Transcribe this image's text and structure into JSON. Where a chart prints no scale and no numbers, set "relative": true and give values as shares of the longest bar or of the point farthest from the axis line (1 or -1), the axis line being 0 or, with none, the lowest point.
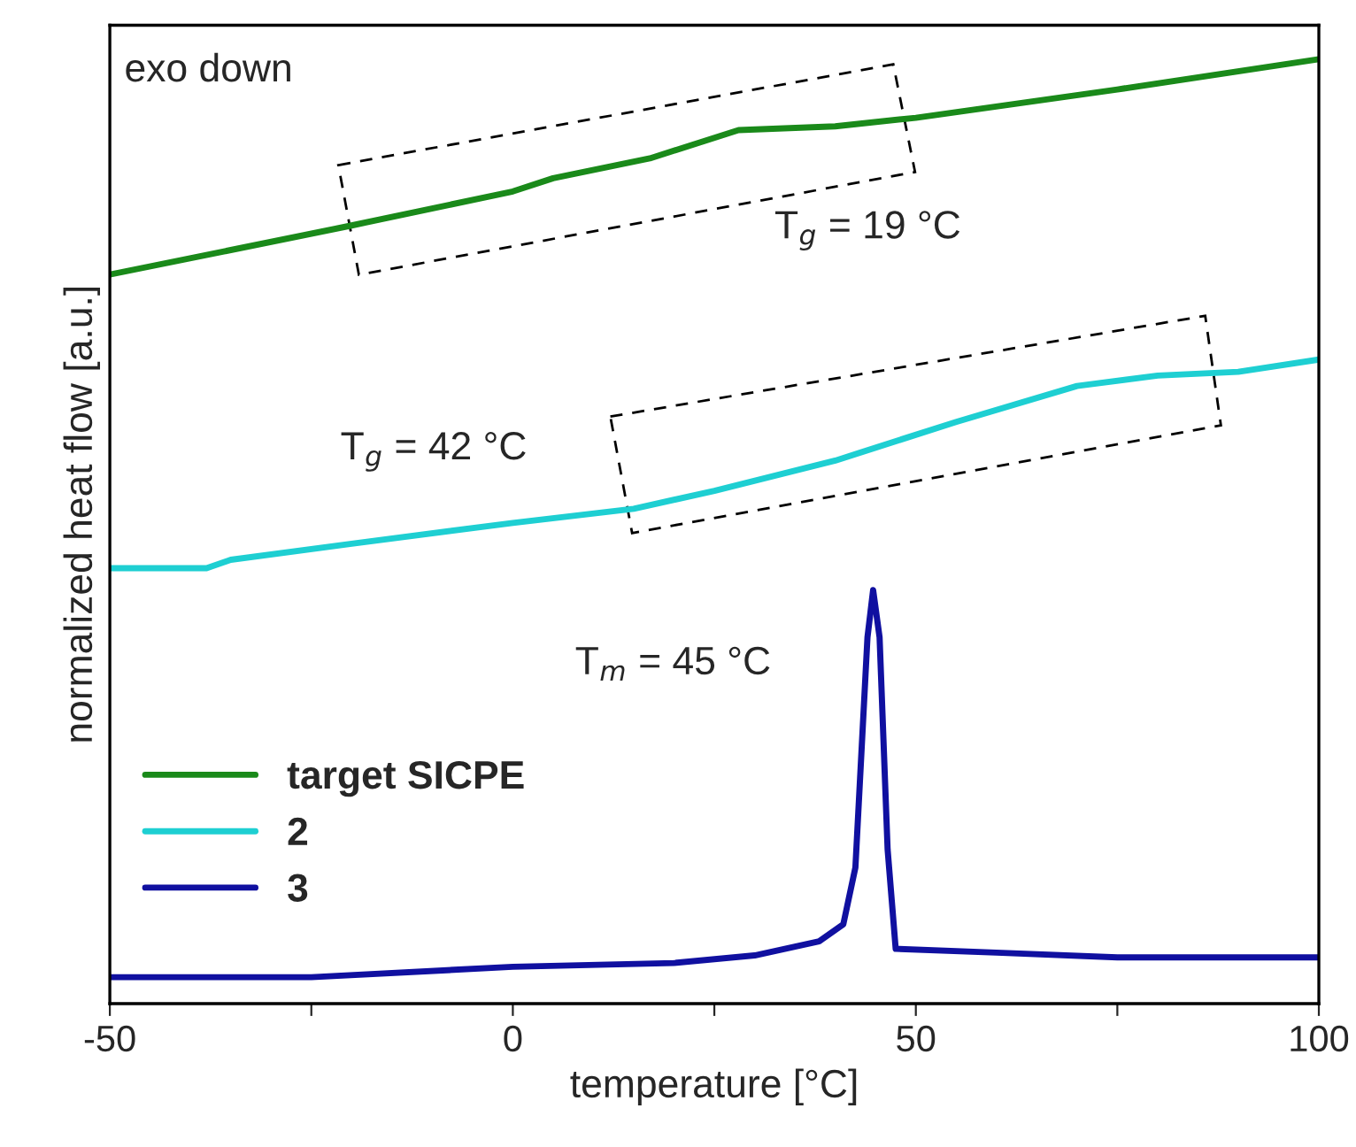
{
  "chart_data": {
    "type": "line",
    "relative": true,
    "xlabel": "temperature [°C]",
    "ylabel": "normalized heat flow [a.u.]",
    "xlim": [
      -50,
      100
    ],
    "xticks": [
      -50,
      {
        "value": -25,
        "label": null
      },
      0,
      {
        "value": 25,
        "label": null
      },
      50,
      {
        "value": 75,
        "label": null
      },
      100
    ],
    "legend": "bottom left",
    "grid": false,
    "annotations": [
      "exo down",
      "T$_{g}$ = 19 °C",
      "T$_{g}$ = 42 °C",
      "T$_{m}$ = 45 °C"
    ],
    "series": [
      {
        "name": "target SICPE",
        "color": "#1a8a1a",
        "x": [
          -50,
          -20,
          0,
          5,
          17,
          28,
          40,
          50,
          75,
          100
        ],
        "values": [
          0.772,
          0.824,
          0.86,
          0.874,
          0.895,
          0.925,
          0.929,
          0.938,
          0.968,
          1.0
        ]
      },
      {
        "name": "2",
        "color": "#1ecfd2",
        "x": [
          -50,
          -38,
          -35,
          -20,
          0,
          15,
          25,
          40,
          55,
          70,
          80,
          90,
          100
        ],
        "values": [
          0.461,
          0.461,
          0.47,
          0.487,
          0.509,
          0.524,
          0.543,
          0.575,
          0.616,
          0.654,
          0.665,
          0.669,
          0.682
        ]
      },
      {
        "name": "3",
        "color": "#1010a0",
        "x": [
          -50,
          -25,
          0,
          20,
          30,
          38,
          41,
          42.5,
          44,
          44.7,
          45.5,
          46.5,
          47.5,
          60,
          75,
          100
        ],
        "values": [
          0.028,
          0.028,
          0.039,
          0.043,
          0.051,
          0.066,
          0.084,
          0.144,
          0.388,
          0.438,
          0.388,
          0.163,
          0.058,
          0.054,
          0.049,
          0.049
        ]
      }
    ]
  }
}
